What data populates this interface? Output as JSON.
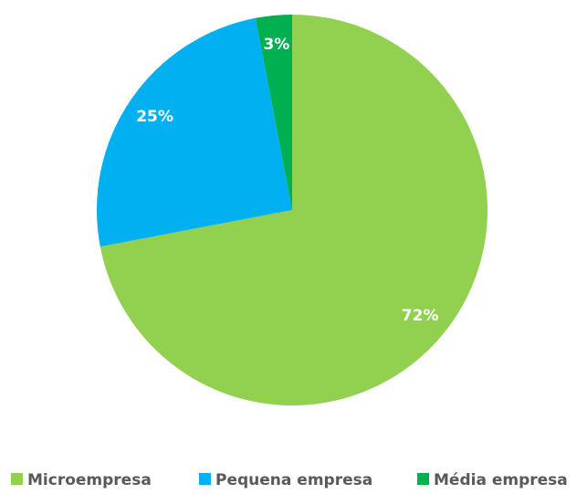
{
  "chart_data": {
    "type": "pie",
    "categories": [
      "Microempresa",
      "Pequena empresa",
      "Média empresa"
    ],
    "values": [
      72,
      25,
      3
    ],
    "value_labels": [
      "72%",
      "25%",
      "3%"
    ],
    "colors": [
      "#92d050",
      "#00b0f0",
      "#00b050"
    ],
    "legend": "bottom"
  }
}
